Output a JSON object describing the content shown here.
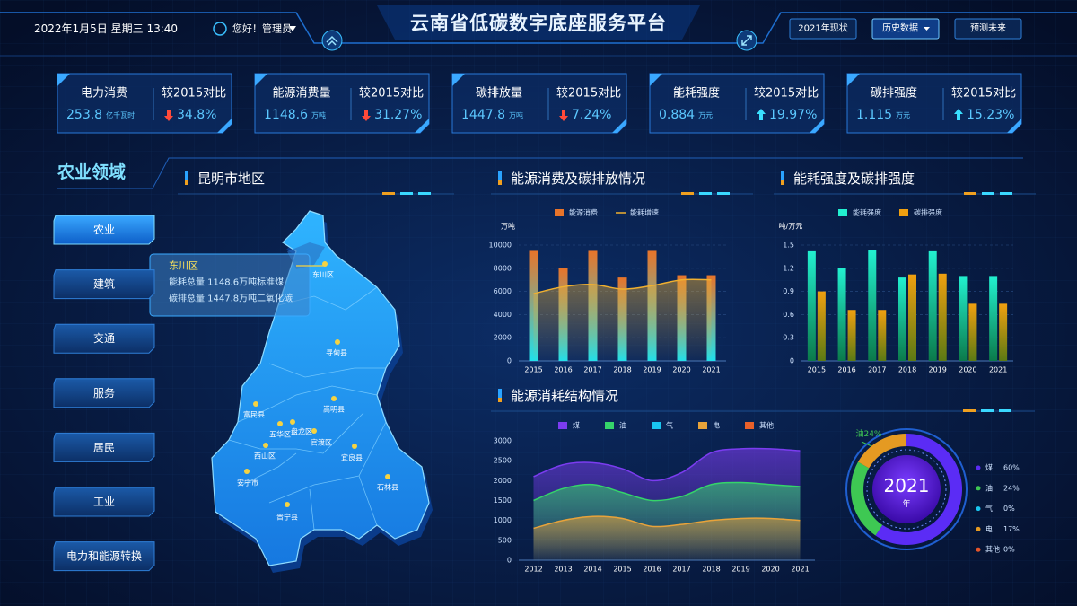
{
  "header": {
    "datetime": "2022年1月5日 星期三  13:40",
    "greeting": "您好！管理员",
    "title": "云南省低碳数字底座服务平台",
    "tabs": [
      "2021年现状",
      "历史数据",
      "预测未来"
    ],
    "active_tab": 1
  },
  "kpis": [
    {
      "label": "电力消费",
      "value": "253.8",
      "unit": "亿千瓦时",
      "compare_label": "较2015对比",
      "change": "34.8%",
      "direction": "down"
    },
    {
      "label": "能源消费量",
      "value": "1148.6",
      "unit": "万吨",
      "compare_label": "较2015对比",
      "change": "31.27%",
      "direction": "down"
    },
    {
      "label": "碳排放量",
      "value": "1447.8",
      "unit": "万吨",
      "compare_label": "较2015对比",
      "change": "7.24%",
      "direction": "down"
    },
    {
      "label": "能耗强度",
      "value": "0.884",
      "unit": "万元",
      "compare_label": "较2015对比",
      "change": "19.97%",
      "direction": "up"
    },
    {
      "label": "碳排强度",
      "value": "1.115",
      "unit": "万元",
      "compare_label": "较2015对比",
      "change": "15.23%",
      "direction": "up"
    }
  ],
  "sector": {
    "title": "农业领域",
    "menu": [
      "农业",
      "建筑",
      "交通",
      "服务",
      "居民",
      "工业",
      "电力和能源转换"
    ],
    "active": 0
  },
  "map": {
    "title": "昆明市地区",
    "tooltip": {
      "district": "东川区",
      "lines": [
        "能耗总量  1148.6万吨标准煤",
        "碳排总量  1447.8万吨二氧化碳"
      ]
    },
    "districts": [
      "东川区",
      "寻甸县",
      "嵩明县",
      "富民县",
      "五华区",
      "盘龙区",
      "官渡区",
      "西山区",
      "安宁市",
      "宜良县",
      "石林县",
      "晋宁县"
    ]
  },
  "chart_data": [
    {
      "type": "bar",
      "title": "能源消费及碳排放情况",
      "y_label": "万吨",
      "categories": [
        "2015",
        "2016",
        "2017",
        "2018",
        "2019",
        "2020",
        "2021"
      ],
      "series": [
        {
          "name": "能源消费",
          "color": "#e8742a",
          "color2": "#1fe0ec",
          "values": [
            9500,
            8000,
            9500,
            7200,
            9500,
            7400,
            7400
          ]
        },
        {
          "name": "能耗增速",
          "type": "line",
          "color": "#f0b030",
          "values": [
            5800,
            6400,
            6600,
            6200,
            6500,
            7000,
            7000
          ]
        }
      ],
      "ylim": [
        0,
        10000
      ],
      "yticks": [
        0,
        2000,
        4000,
        6000,
        8000,
        10000
      ],
      "grid": true
    },
    {
      "type": "bar",
      "title": "能耗强度及碳排强度",
      "y_label": "吨/万元",
      "categories": [
        "2015",
        "2016",
        "2017",
        "2018",
        "2019",
        "2020",
        "2021"
      ],
      "series": [
        {
          "name": "能耗强度",
          "color": "#22f0d0",
          "color2": "#0b7a4a",
          "values": [
            1.42,
            1.2,
            1.43,
            1.08,
            1.42,
            1.1,
            1.1
          ]
        },
        {
          "name": "碳排强度",
          "color": "#f0a010",
          "color2": "#5b7a14",
          "values": [
            0.9,
            0.66,
            0.66,
            1.12,
            1.13,
            0.74,
            0.74
          ]
        }
      ],
      "ylim": [
        0,
        1.5
      ],
      "yticks": [
        0,
        0.3,
        0.6,
        0.9,
        1.2,
        1.5
      ],
      "grid": true
    },
    {
      "type": "area",
      "title": "能源消耗结构情况",
      "categories": [
        "2012",
        "2013",
        "2014",
        "2015",
        "2016",
        "2017",
        "2018",
        "2019",
        "2020",
        "2021"
      ],
      "series": [
        {
          "name": "煤",
          "color": "#7b3cf0",
          "values": [
            2100,
            2400,
            2450,
            2300,
            2000,
            2200,
            2700,
            2800,
            2800,
            2750
          ]
        },
        {
          "name": "油",
          "color": "#35d46a",
          "values": [
            1500,
            1800,
            1900,
            1700,
            1500,
            1600,
            1900,
            1950,
            1900,
            1850
          ]
        },
        {
          "name": "气",
          "color": "#19c6f0",
          "values": [
            null,
            null,
            null,
            null,
            null,
            null,
            null,
            null,
            null,
            null
          ]
        },
        {
          "name": "电",
          "color": "#e8a33a",
          "values": [
            800,
            1000,
            1100,
            1050,
            850,
            900,
            1000,
            1050,
            1050,
            1000
          ]
        },
        {
          "name": "其他",
          "color": "#e8602a",
          "values": [
            null,
            null,
            null,
            null,
            null,
            null,
            null,
            null,
            null,
            null
          ]
        }
      ],
      "ylim": [
        0,
        3000
      ],
      "yticks": [
        0,
        500,
        1000,
        1500,
        2000,
        2500,
        3000
      ],
      "grid": false
    },
    {
      "type": "pie",
      "year": "2021",
      "year_unit": "年",
      "callout": "油24%",
      "categories": [
        "煤",
        "油",
        "气",
        "电",
        "其他"
      ],
      "values": [
        60,
        24,
        0,
        17,
        0
      ],
      "value_labels": [
        "60%",
        "24%",
        "0%",
        "17%",
        "0%"
      ],
      "colors": [
        "#5b2cf5",
        "#3ec853",
        "#19c6f0",
        "#e59a22",
        "#e5552a"
      ]
    }
  ]
}
